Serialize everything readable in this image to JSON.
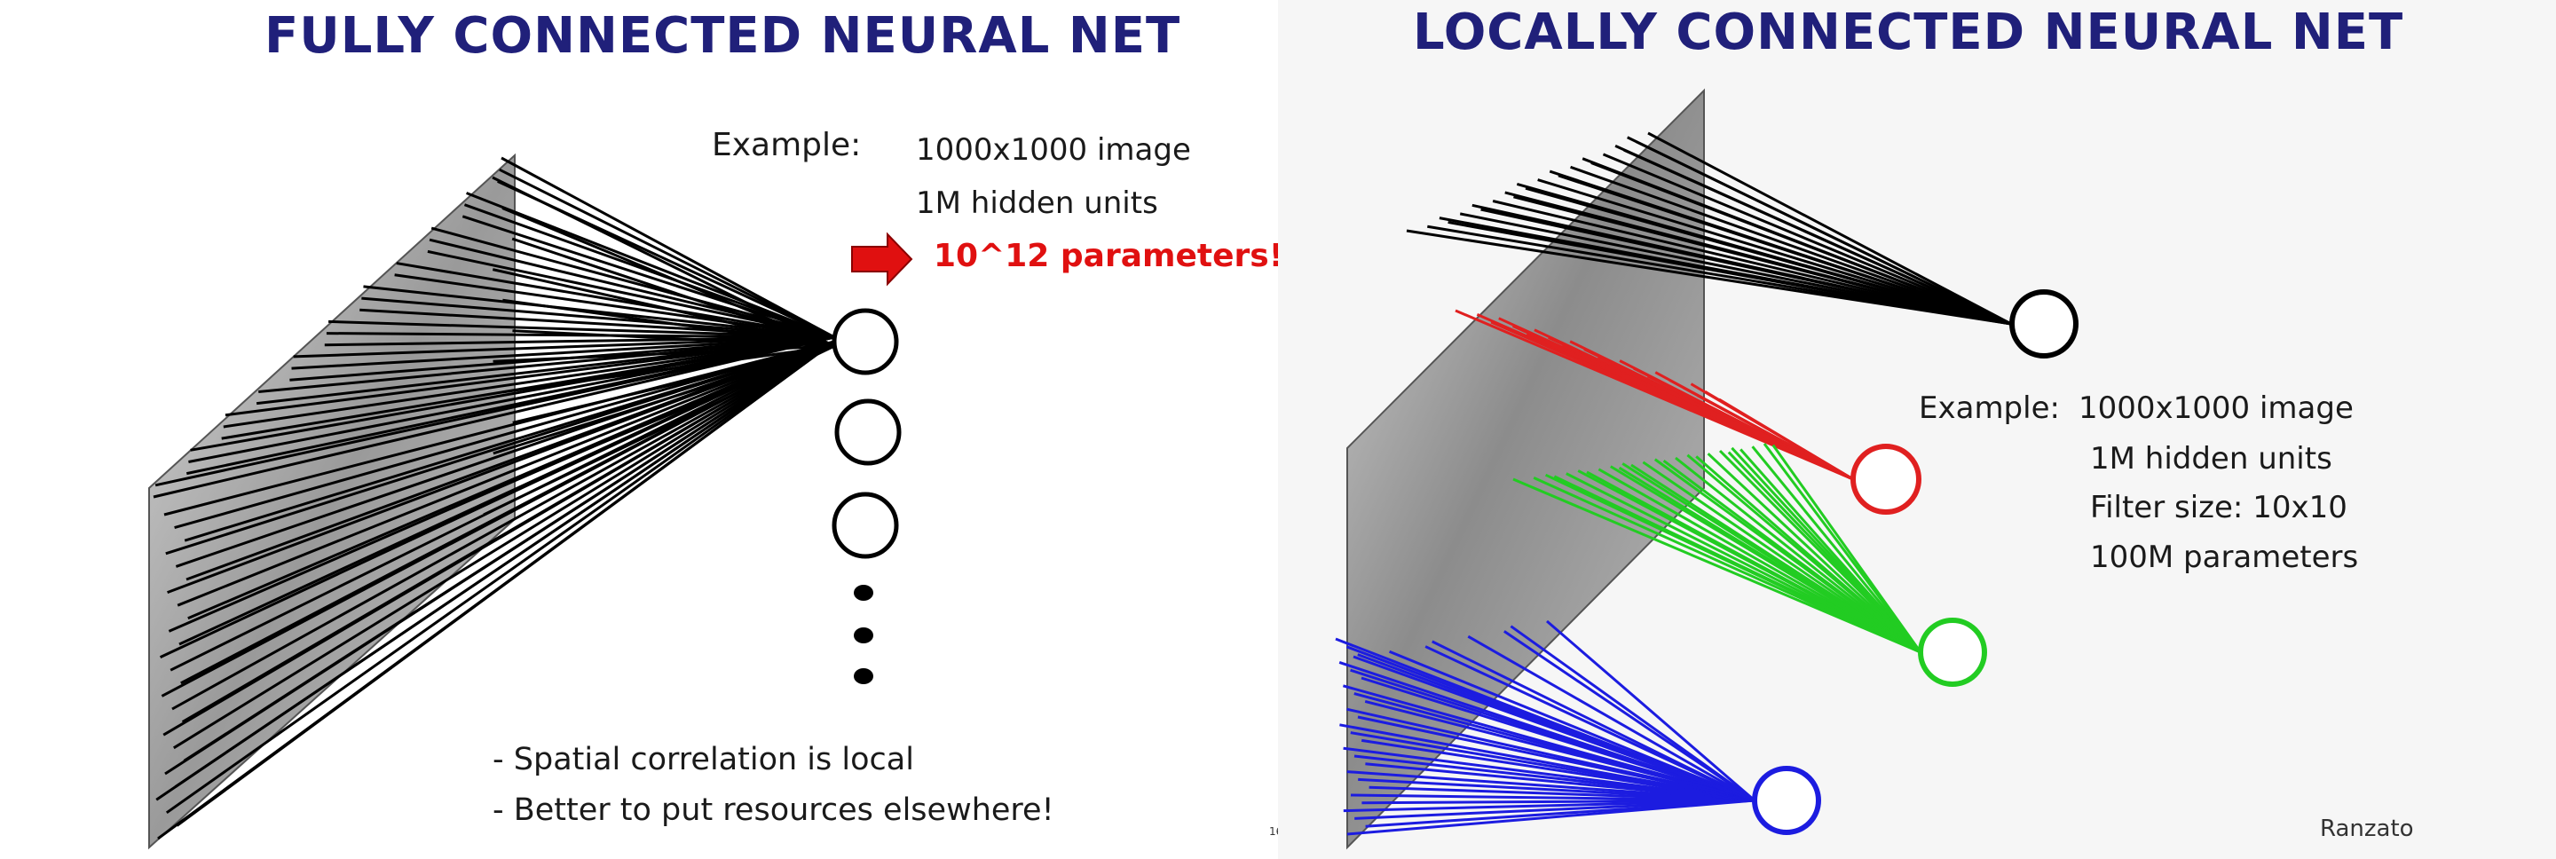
{
  "left": {
    "title": "FULLY CONNECTED NEURAL NET",
    "example_label": "Example:",
    "example_image": "1000x1000 image",
    "hidden_units": "1M hidden units",
    "parameters": "10^12 parameters",
    "parameters_suffix": "!!!",
    "bullet1": "- Spatial correlation is local",
    "bullet2": "- Better to put resources elsewhere!",
    "page_number": "16"
  },
  "right": {
    "title": "LOCALLY CONNECTED NEURAL NET",
    "example_label": "Example:",
    "example_image": "1000x1000 image",
    "hidden_units": "1M hidden units",
    "filter_size": "Filter size: 10x10",
    "parameters": "100M parameters",
    "author": "Ranzato"
  },
  "colors": {
    "title": "#20207a",
    "emphasis": "#e01010",
    "filter_red": "#e02020",
    "filter_green": "#22cc22",
    "filter_blue": "#1c1ce0",
    "connection": "#000000"
  },
  "icons": [
    "arrow-right-icon",
    "neuron-icon",
    "ellipsis-dots-icon"
  ]
}
